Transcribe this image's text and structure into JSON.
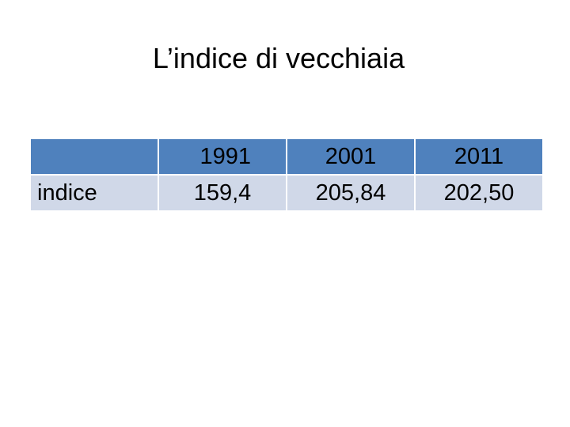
{
  "slide": {
    "title": "L’indice di vecchiaia"
  },
  "table": {
    "header": [
      "",
      "1991",
      "2001",
      "2011"
    ],
    "rows": [
      {
        "label": "indice",
        "values": [
          "159,4",
          "205,84",
          "202,50"
        ]
      }
    ]
  },
  "colors": {
    "header_fill": "#4f81bd",
    "row_fill": "#d0d8e8"
  }
}
